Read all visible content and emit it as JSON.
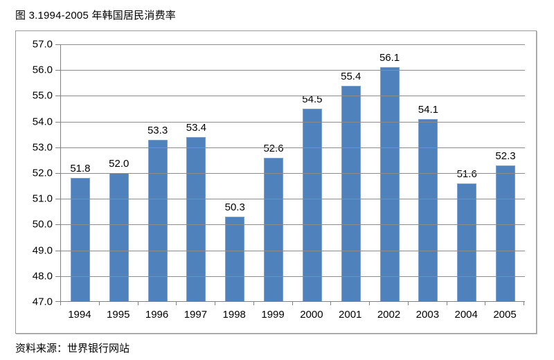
{
  "title": "图 3.1994-2005 年韩国居民消费率",
  "source_note": "资料来源：世界银行网站",
  "chart_data": {
    "type": "bar",
    "title": "图 3.1994-2005 年韩国居民消费率",
    "categories": [
      "1994",
      "1995",
      "1996",
      "1997",
      "1998",
      "1999",
      "2000",
      "2001",
      "2002",
      "2003",
      "2004",
      "2005"
    ],
    "values": [
      51.8,
      52.0,
      53.3,
      53.4,
      50.3,
      52.6,
      54.5,
      55.4,
      56.1,
      54.1,
      51.6,
      52.3
    ],
    "value_labels": [
      "51.8",
      "52.0",
      "53.3",
      "53.4",
      "50.3",
      "52.6",
      "54.5",
      "55.4",
      "56.1",
      "54.1",
      "51.6",
      "52.3"
    ],
    "xlabel": "",
    "ylabel": "",
    "ylim": [
      47.0,
      57.0
    ],
    "y_tick_step": 1.0,
    "y_ticks": [
      "57.0",
      "56.0",
      "55.0",
      "54.0",
      "53.0",
      "52.0",
      "51.0",
      "50.0",
      "49.0",
      "48.0",
      "47.0"
    ],
    "grid": true,
    "legend": "none",
    "source": "资料来源：世界银行网站",
    "colors": {
      "bar_fill": "#4F81BD",
      "bar_border": "#7BA1D0",
      "gridline": "#8C8C8C",
      "axis_line": "#808080",
      "text": "#000000",
      "chart_border": "#9A9A9A",
      "background": "#FFFFFF"
    }
  }
}
